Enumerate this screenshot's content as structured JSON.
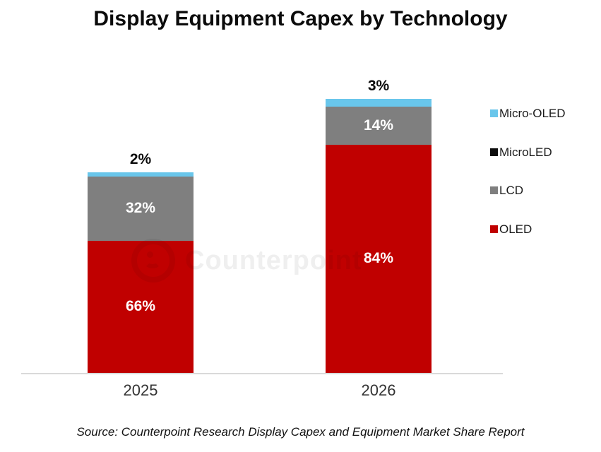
{
  "title": "Display Equipment Capex by Technology",
  "watermark": {
    "text": "Counterpoint"
  },
  "source": "Source: Counterpoint Research Display Capex and Equipment Market Share Report",
  "chart_data": {
    "type": "bar",
    "stacked": true,
    "unit": "%",
    "title": "Display Equipment Capex by Technology",
    "categories": [
      "2025",
      "2026"
    ],
    "series": [
      {
        "name": "OLED",
        "color": "#C00000",
        "values": [
          66,
          84
        ],
        "label_style": "inside-white"
      },
      {
        "name": "LCD",
        "color": "#7F7F7F",
        "values": [
          32,
          14
        ],
        "label_style": "inside-white"
      },
      {
        "name": "MicroLED",
        "color": "#0D0D0D",
        "values": [
          0,
          0
        ],
        "label_style": "none"
      },
      {
        "name": "Micro-OLED",
        "color": "#69C6EB",
        "values": [
          2,
          3
        ],
        "label_style": "above-black"
      }
    ],
    "legend": {
      "position": "right",
      "order": [
        "Micro-OLED",
        "MicroLED",
        "LCD",
        "OLED"
      ]
    },
    "axis": {
      "gridlines": false,
      "baseline_color": "#D9D9D9"
    }
  }
}
